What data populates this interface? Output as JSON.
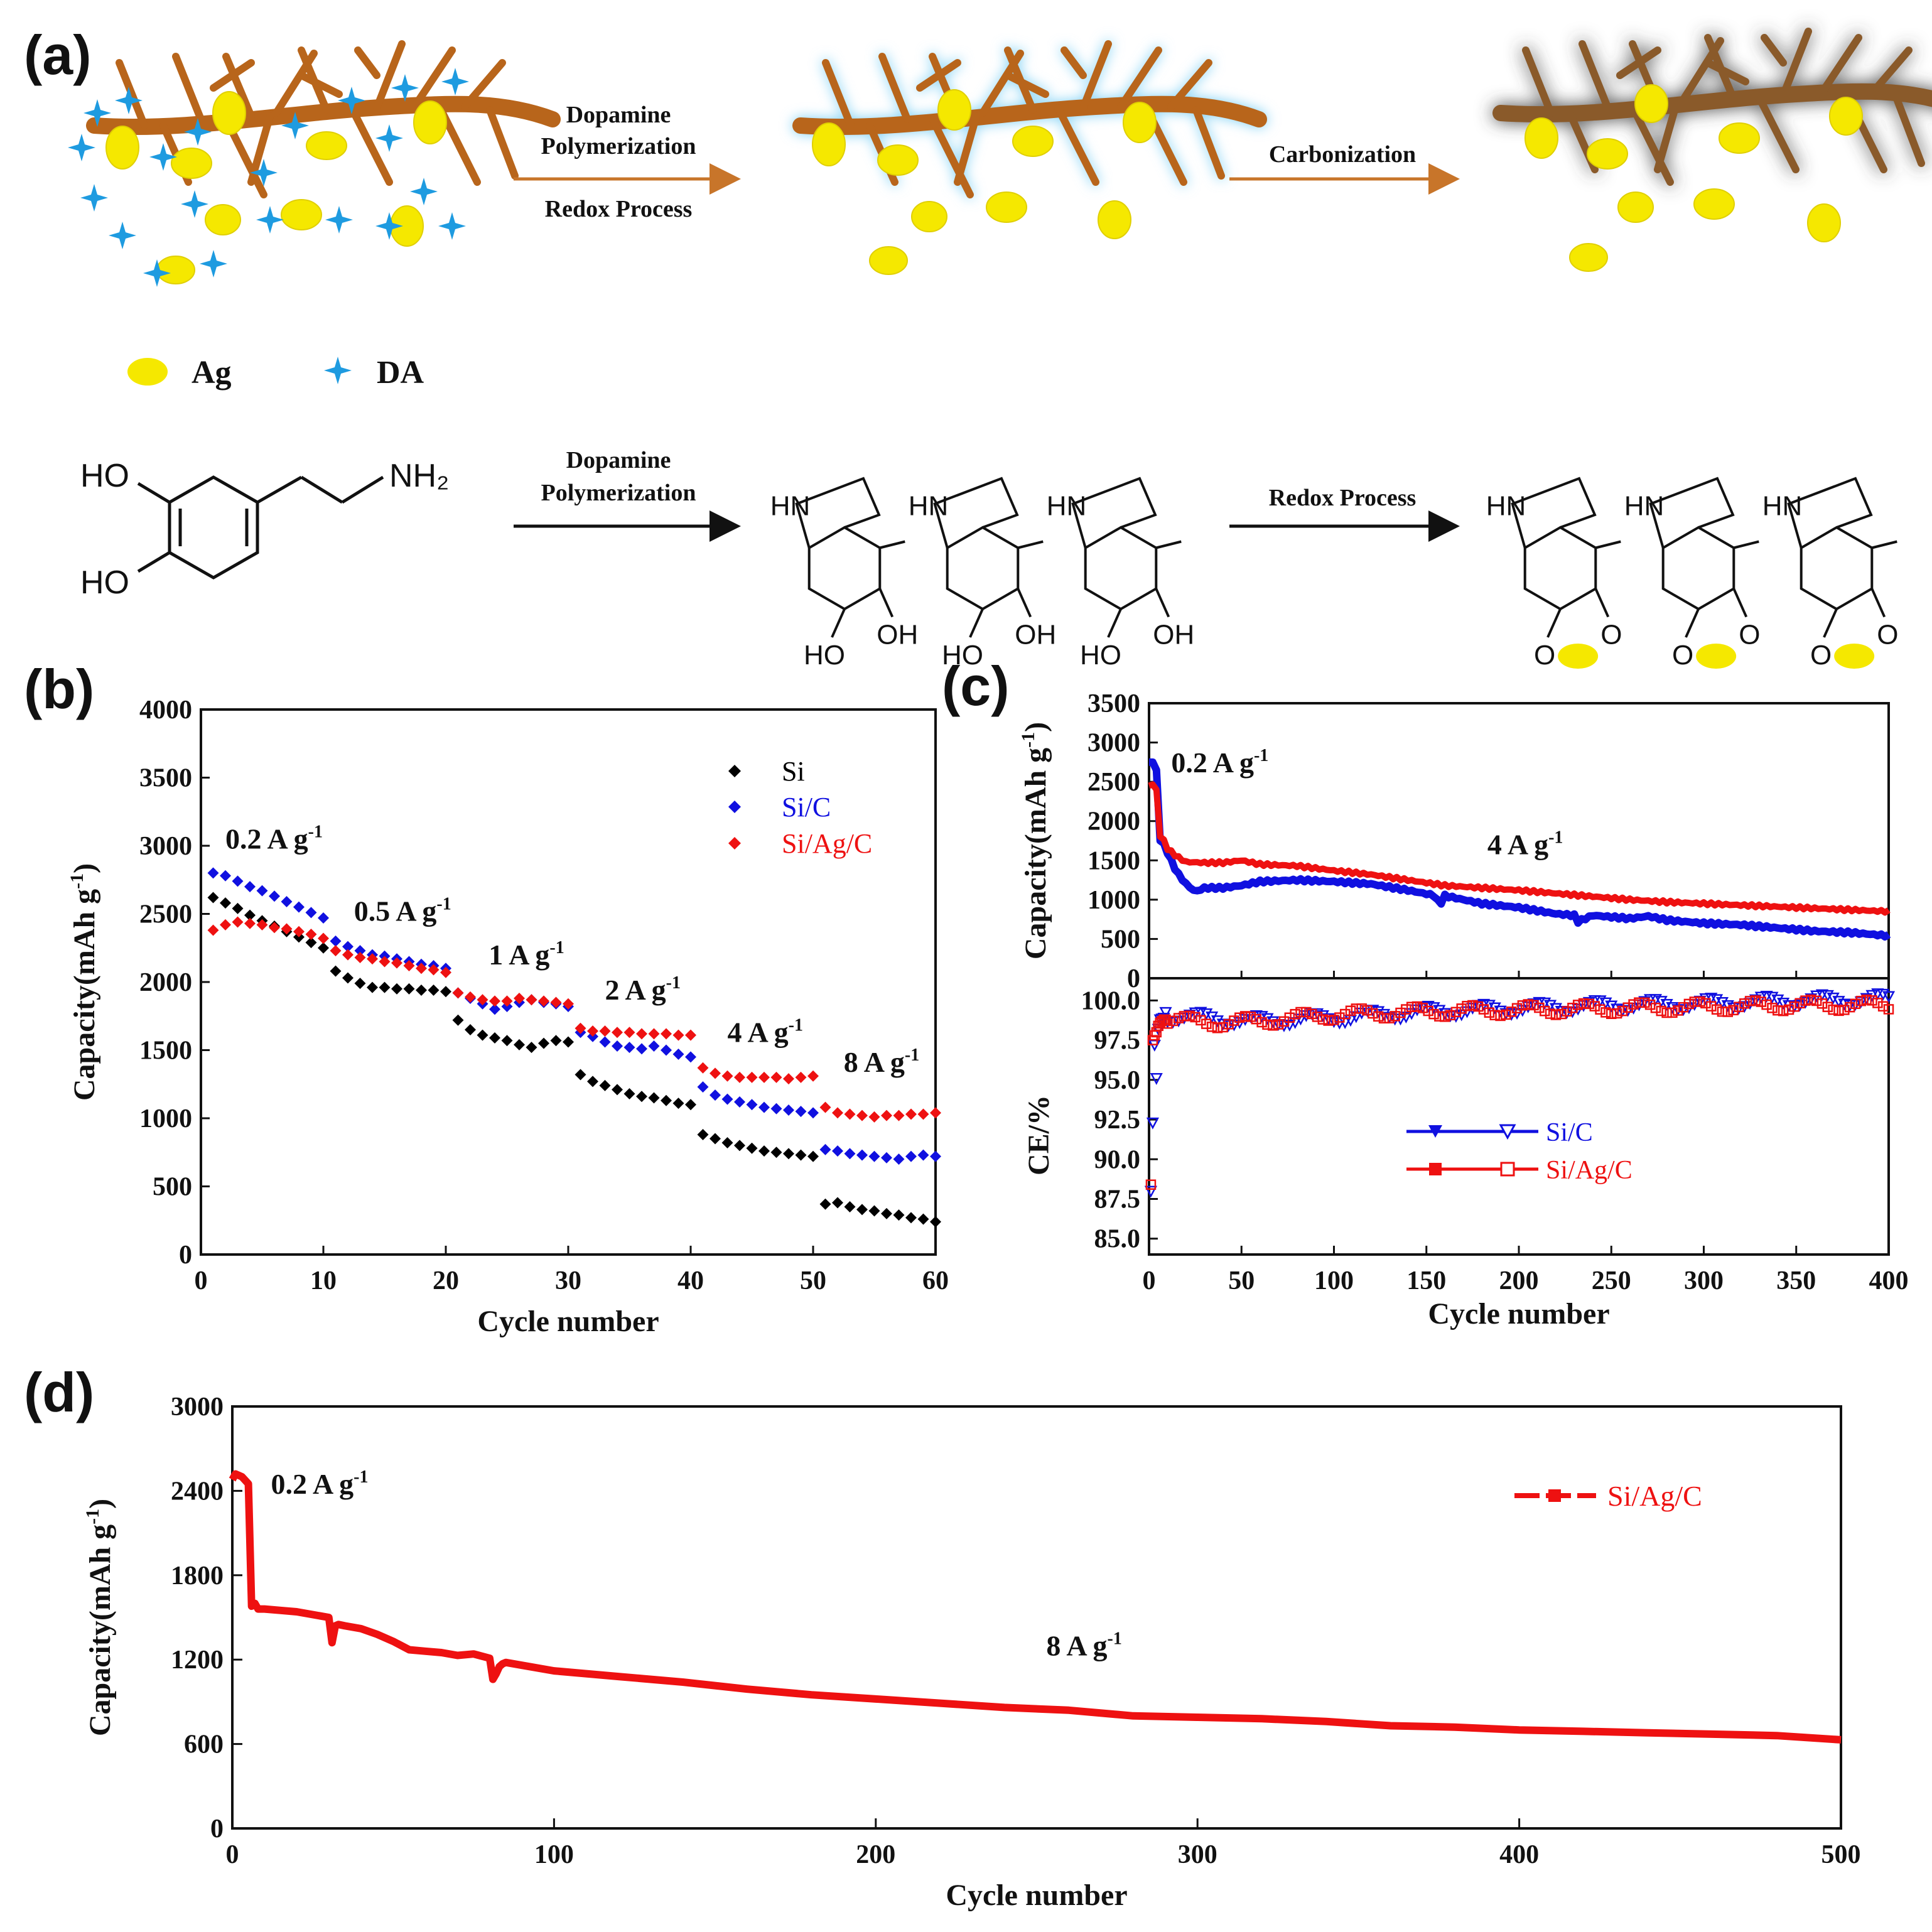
{
  "panel_labels": {
    "a": "(a)",
    "b": "(b)",
    "c": "(c)",
    "d": "(d)"
  },
  "schematic": {
    "step1_label_1": "Dopamine",
    "step1_label_2": "Polymerization",
    "step1_label_3": "Redox Process",
    "step2_label": "Carbonization",
    "legend_ag": "Ag",
    "legend_da": "DA",
    "chem_step1_label_1": "Dopamine",
    "chem_step1_label_2": "Polymerization",
    "chem_step2_label": "Redox Process",
    "dopamine": {
      "ho": "HO",
      "nh2": "NH₂"
    },
    "polymer": {
      "hn": "HN",
      "ho": "HO",
      "oh": "OH"
    },
    "oxidized": {
      "hn": "HN",
      "o": "O"
    },
    "colors": {
      "branch": "#b8651b",
      "ag": "#f5e800",
      "da": "#1e9be0",
      "glow": "#9fd8f2",
      "carbon_shadow": "#555555"
    }
  },
  "chart_data": [
    {
      "id": "b",
      "type": "scatter",
      "xlabel": "Cycle number",
      "ylabel": "Capacity(mAh g",
      "ylabel_sup": "-1",
      "ylabel_end": ")",
      "xlim": [
        0,
        60
      ],
      "ylim": [
        0,
        4000
      ],
      "xticks": [
        0,
        10,
        20,
        30,
        40,
        50,
        60
      ],
      "yticks": [
        0,
        500,
        1000,
        1500,
        2000,
        2500,
        3000,
        3500,
        4000
      ],
      "annotations": [
        {
          "text": "0.2 A g",
          "sup": "-1",
          "x": 2,
          "y": 2980
        },
        {
          "text": "0.5 A g",
          "sup": "-1",
          "x": 12.5,
          "y": 2450
        },
        {
          "text": "1 A g",
          "sup": "-1",
          "x": 23.5,
          "y": 2130
        },
        {
          "text": "2 A g",
          "sup": "-1",
          "x": 33,
          "y": 1870
        },
        {
          "text": "4 A g",
          "sup": "-1",
          "x": 43,
          "y": 1560
        },
        {
          "text": "8 A g",
          "sup": "-1",
          "x": 52.5,
          "y": 1340
        }
      ],
      "series": [
        {
          "name": "Si",
          "color": "#000000",
          "values": [
            2620,
            2580,
            2540,
            2490,
            2450,
            2410,
            2370,
            2330,
            2290,
            2250,
            2080,
            2030,
            1990,
            1960,
            1960,
            1950,
            1950,
            1940,
            1940,
            1930,
            1720,
            1650,
            1610,
            1590,
            1570,
            1540,
            1520,
            1550,
            1570,
            1560,
            1320,
            1270,
            1240,
            1210,
            1180,
            1160,
            1150,
            1130,
            1110,
            1100,
            880,
            850,
            820,
            800,
            780,
            760,
            750,
            740,
            730,
            720,
            370,
            380,
            350,
            330,
            320,
            300,
            290,
            270,
            260,
            240
          ]
        },
        {
          "name": "Si/C",
          "color": "#1010e0",
          "values": [
            2800,
            2780,
            2740,
            2700,
            2670,
            2630,
            2590,
            2550,
            2510,
            2470,
            2300,
            2260,
            2230,
            2200,
            2190,
            2170,
            2150,
            2130,
            2120,
            2100,
            1920,
            1880,
            1840,
            1800,
            1820,
            1850,
            1870,
            1850,
            1840,
            1820,
            1630,
            1600,
            1560,
            1530,
            1520,
            1510,
            1530,
            1500,
            1470,
            1450,
            1230,
            1170,
            1140,
            1120,
            1100,
            1080,
            1070,
            1060,
            1050,
            1040,
            770,
            760,
            740,
            730,
            720,
            710,
            700,
            720,
            730,
            720
          ]
        },
        {
          "name": "Si/Ag/C",
          "color": "#ee1111",
          "values": [
            2380,
            2420,
            2440,
            2430,
            2420,
            2400,
            2390,
            2370,
            2350,
            2320,
            2230,
            2200,
            2180,
            2170,
            2150,
            2140,
            2120,
            2100,
            2090,
            2070,
            1920,
            1890,
            1870,
            1860,
            1860,
            1880,
            1870,
            1860,
            1850,
            1840,
            1660,
            1640,
            1640,
            1630,
            1630,
            1620,
            1620,
            1620,
            1610,
            1610,
            1370,
            1330,
            1310,
            1300,
            1300,
            1300,
            1300,
            1290,
            1300,
            1310,
            1080,
            1040,
            1030,
            1020,
            1010,
            1020,
            1020,
            1030,
            1030,
            1040
          ]
        }
      ]
    },
    {
      "id": "c_top",
      "type": "line",
      "ylabel": "Capacity(mAh g",
      "ylabel_sup": "-1",
      "ylabel_end": ")",
      "xlim": [
        0,
        400
      ],
      "ylim": [
        0,
        3500
      ],
      "yticks": [
        0,
        500,
        1000,
        1500,
        2000,
        2500,
        3000,
        3500
      ],
      "annotations": [
        {
          "text": "0.2 A g",
          "sup": "-1",
          "x": 12,
          "y": 2620
        },
        {
          "text": "4 A g",
          "sup": "-1",
          "x": 183,
          "y": 1580
        }
      ],
      "series": [
        {
          "name": "Si/C",
          "color": "#1010e0",
          "x": [
            0,
            1,
            3,
            5,
            6,
            8,
            10,
            15,
            20,
            25,
            30,
            40,
            50,
            60,
            80,
            100,
            120,
            140,
            155,
            157,
            160,
            180,
            200,
            220,
            230,
            232,
            240,
            260,
            270,
            280,
            300,
            320,
            340,
            360,
            380,
            400
          ],
          "y": [
            2750,
            2800,
            2700,
            2600,
            1750,
            1700,
            1600,
            1350,
            1200,
            1100,
            1150,
            1150,
            1180,
            1230,
            1250,
            1230,
            1200,
            1120,
            1050,
            920,
            1050,
            950,
            900,
            820,
            800,
            720,
            800,
            760,
            790,
            740,
            700,
            680,
            640,
            600,
            580,
            540
          ]
        },
        {
          "name": "Si/Ag/C",
          "color": "#ee1111",
          "x": [
            0,
            1,
            3,
            5,
            6,
            8,
            10,
            15,
            20,
            30,
            40,
            50,
            60,
            80,
            100,
            120,
            140,
            160,
            180,
            200,
            220,
            240,
            260,
            280,
            300,
            320,
            340,
            360,
            380,
            400
          ],
          "y": [
            2450,
            2480,
            2450,
            2350,
            1800,
            1750,
            1650,
            1550,
            1480,
            1470,
            1470,
            1500,
            1450,
            1430,
            1370,
            1320,
            1250,
            1180,
            1150,
            1120,
            1080,
            1040,
            1000,
            970,
            950,
            930,
            910,
            890,
            870,
            850
          ]
        }
      ]
    },
    {
      "id": "c_bottom",
      "type": "scatter",
      "xlabel": "Cycle number",
      "ylabel": "CE/%",
      "xlim": [
        0,
        400
      ],
      "ylim": [
        84,
        101.4
      ],
      "xticks": [
        0,
        50,
        100,
        150,
        200,
        250,
        300,
        350,
        400
      ],
      "yticks": [
        85.0,
        87.5,
        90.0,
        92.5,
        95.0,
        97.5,
        100.0
      ],
      "ytick_labels": [
        "85.0",
        "87.5",
        "90.0",
        "92.5",
        "95.0",
        "97.5",
        "100.0"
      ],
      "legend": [
        {
          "name": "Si/C",
          "color": "#1010e0"
        },
        {
          "name": "Si/Ag/C",
          "color": "#ee1111"
        }
      ],
      "series": [
        {
          "name": "Si/C",
          "color": "#1010e0",
          "x": [
            1,
            2,
            3,
            4,
            5,
            6,
            8,
            12,
            20,
            40,
            60,
            80,
            100,
            150,
            200,
            250,
            300,
            350,
            400
          ],
          "y": [
            88.0,
            92.3,
            97.2,
            95.1,
            98.2,
            98.8,
            98.9,
            99.0,
            99.0,
            98.8,
            98.7,
            98.8,
            98.9,
            99.3,
            99.5,
            99.7,
            99.8,
            100.0,
            100.1
          ]
        },
        {
          "name": "Si/Ag/C",
          "color": "#ee1111",
          "x": [
            1,
            2,
            3,
            4,
            5,
            6,
            8,
            12,
            20,
            40,
            60,
            80,
            100,
            150,
            200,
            250,
            300,
            350,
            400
          ],
          "y": [
            88.4,
            97.5,
            97.8,
            98.0,
            98.4,
            98.6,
            98.8,
            98.8,
            98.7,
            98.6,
            98.7,
            98.9,
            99.1,
            99.3,
            99.4,
            99.5,
            99.6,
            99.7,
            99.7
          ]
        }
      ]
    },
    {
      "id": "d",
      "type": "line",
      "xlabel": "Cycle number",
      "ylabel": "Capacity(mAh g",
      "ylabel_sup": "-1",
      "ylabel_end": ")",
      "xlim": [
        0,
        500
      ],
      "ylim": [
        0,
        3000
      ],
      "xticks": [
        0,
        100,
        200,
        300,
        400,
        500
      ],
      "yticks": [
        0,
        600,
        1200,
        1800,
        2400,
        3000
      ],
      "legend": [
        {
          "name": "Si/Ag/C",
          "color": "#ee1111"
        }
      ],
      "annotations": [
        {
          "text": "0.2 A g",
          "sup": "-1",
          "x": 12,
          "y": 2380
        },
        {
          "text": "8 A g",
          "sup": "-1",
          "x": 253,
          "y": 1230
        }
      ],
      "series": [
        {
          "name": "Si/Ag/C",
          "color": "#ee1111",
          "x": [
            0,
            1,
            3,
            5,
            6,
            7,
            8,
            10,
            15,
            20,
            25,
            30,
            31,
            32,
            33,
            35,
            40,
            45,
            50,
            55,
            60,
            65,
            70,
            75,
            80,
            81,
            82,
            83,
            84,
            85,
            90,
            100,
            120,
            140,
            160,
            180,
            200,
            220,
            240,
            260,
            280,
            300,
            320,
            340,
            360,
            380,
            400,
            420,
            440,
            460,
            480,
            500
          ],
          "y": [
            2480,
            2520,
            2500,
            2450,
            1580,
            1600,
            1560,
            1560,
            1550,
            1540,
            1520,
            1500,
            1320,
            1440,
            1450,
            1440,
            1420,
            1380,
            1330,
            1270,
            1260,
            1250,
            1230,
            1240,
            1210,
            1060,
            1100,
            1150,
            1170,
            1180,
            1160,
            1120,
            1080,
            1040,
            990,
            950,
            920,
            890,
            860,
            840,
            800,
            790,
            780,
            760,
            730,
            720,
            700,
            690,
            680,
            670,
            660,
            630
          ]
        }
      ]
    }
  ]
}
